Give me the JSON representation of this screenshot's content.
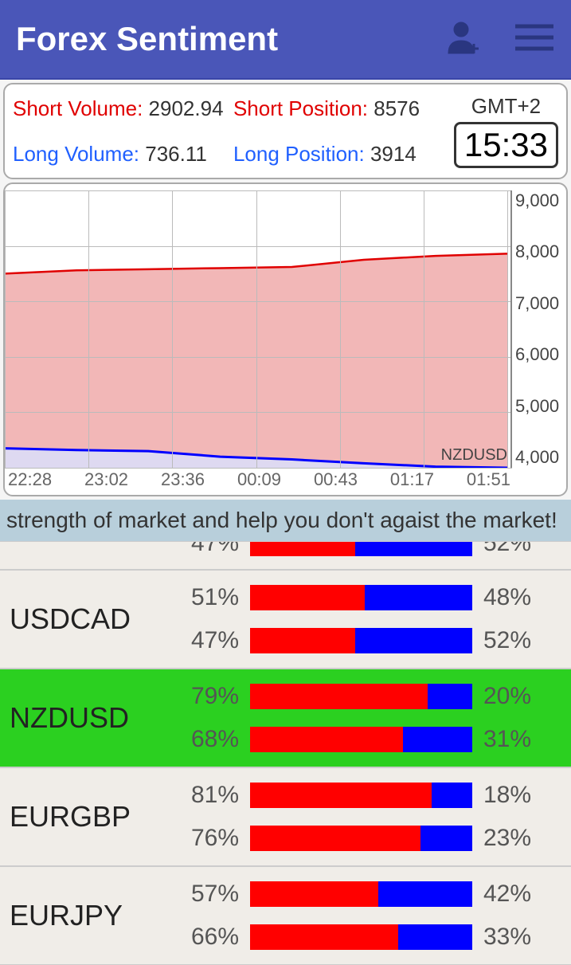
{
  "header": {
    "title": "Forex Sentiment"
  },
  "stats": {
    "short_volume_label": "Short Volume:",
    "short_volume_value": "2902.94",
    "short_position_label": "Short Position:",
    "short_position_value": "8576",
    "long_volume_label": "Long Volume:",
    "long_volume_value": "736.11",
    "long_position_label": "Long Position:",
    "long_position_value": "3914",
    "timezone": "GMT+2",
    "time": "15:33"
  },
  "chart": {
    "y_ticks": [
      "9,000",
      "8,000",
      "7,000",
      "6,000",
      "5,000",
      "4,000"
    ],
    "x_ticks": [
      "22:28",
      "23:02",
      "23:36",
      "00:09",
      "00:43",
      "01:17",
      "01:51"
    ],
    "pair_label": "NZDUSD",
    "ymin": 4000,
    "ymax": 9000,
    "grid_color": "#bbb",
    "series_red": {
      "color_line": "#e00000",
      "color_fill": "#f0aaaa",
      "points": [
        7500,
        7560,
        7580,
        7600,
        7620,
        7750,
        7820,
        7860
      ]
    },
    "series_blue": {
      "color_line": "#0000ff",
      "color_fill": "#c8c0e8",
      "points": [
        4350,
        4320,
        4300,
        4200,
        4150,
        4080,
        4020,
        4000
      ]
    }
  },
  "banner": {
    "text": "strength of market and help you don't agaist the market!"
  },
  "pairs": [
    {
      "name": "",
      "partial": "top",
      "lines": [
        {
          "left": "47%",
          "right": "52%",
          "red": 47,
          "blue": 52
        }
      ]
    },
    {
      "name": "USDCAD",
      "lines": [
        {
          "left": "51%",
          "right": "48%",
          "red": 51,
          "blue": 48
        },
        {
          "left": "47%",
          "right": "52%",
          "red": 47,
          "blue": 52
        }
      ]
    },
    {
      "name": "NZDUSD",
      "selected": true,
      "lines": [
        {
          "left": "79%",
          "right": "20%",
          "red": 79,
          "blue": 20
        },
        {
          "left": "68%",
          "right": "31%",
          "red": 68,
          "blue": 31
        }
      ]
    },
    {
      "name": "EURGBP",
      "lines": [
        {
          "left": "81%",
          "right": "18%",
          "red": 81,
          "blue": 18
        },
        {
          "left": "76%",
          "right": "23%",
          "red": 76,
          "blue": 23
        }
      ]
    },
    {
      "name": "EURJPY",
      "lines": [
        {
          "left": "57%",
          "right": "42%",
          "red": 57,
          "blue": 42
        },
        {
          "left": "66%",
          "right": "33%",
          "red": 66,
          "blue": 33
        }
      ]
    }
  ],
  "colors": {
    "header_bg": "#4a56b8",
    "red": "#ff0000",
    "blue": "#0000ff",
    "selected_bg": "#2bd020",
    "banner_bg": "#b8cfdb"
  }
}
